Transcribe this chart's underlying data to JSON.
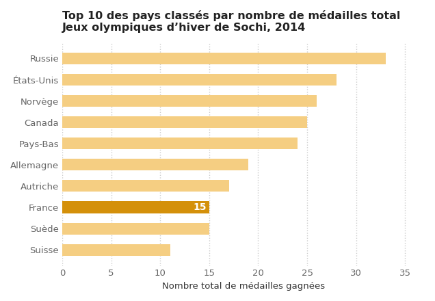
{
  "title_line1": "Top 10 des pays classés par nombre de médailles total",
  "title_line2": "Jeux olympiques d’hiver de Sochi, 2014",
  "xlabel": "Nombre total de médailles gagnées",
  "categories": [
    "Suisse",
    "Suède",
    "France",
    "Autriche",
    "Allemagne",
    "Pays-Bas",
    "Canada",
    "Norvège",
    "États-Unis",
    "Russie"
  ],
  "values": [
    11,
    15,
    15,
    17,
    19,
    24,
    25,
    26,
    28,
    33
  ],
  "highlight_index": 2,
  "bar_color_normal": "#F5CE82",
  "bar_color_highlight": "#D4900A",
  "annotation_text": "15",
  "annotation_color": "#ffffff",
  "xlim": [
    0,
    37
  ],
  "xticks": [
    0,
    5,
    10,
    15,
    20,
    25,
    30,
    35
  ],
  "grid_color": "#cccccc",
  "background_color": "#ffffff",
  "title_fontsize": 11.5,
  "label_fontsize": 9.5,
  "tick_fontsize": 9.5,
  "annotation_fontsize": 10,
  "bar_height": 0.55
}
